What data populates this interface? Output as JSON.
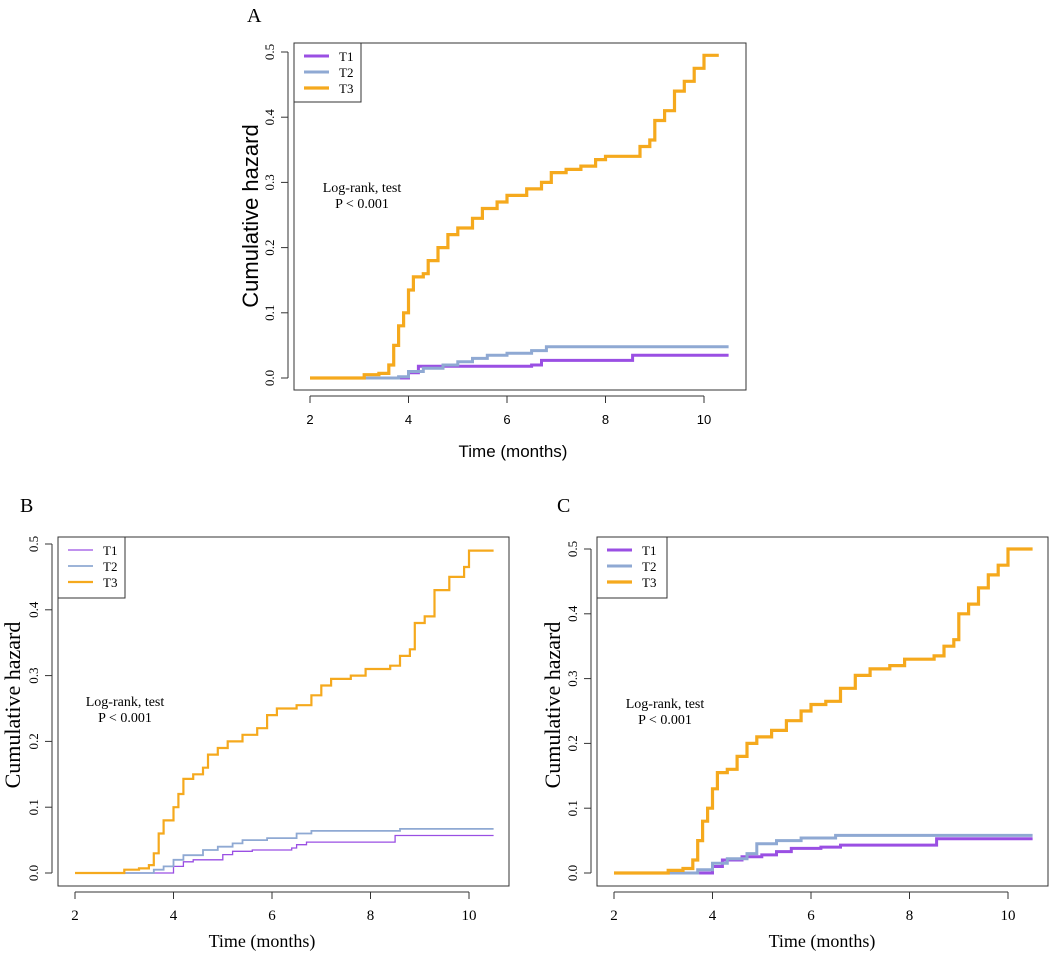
{
  "colors": {
    "T1": "#9a4fe3",
    "T2": "#8fa9d3",
    "T3": "#f5a91d"
  },
  "chart_data": [
    {
      "panel": "A",
      "type": "line",
      "step": true,
      "xlabel": "Time (months)",
      "ylabel": "Cumulative hazard",
      "xlim": [
        2,
        10.5
      ],
      "ylim": [
        0,
        0.5
      ],
      "xticks": [
        "2",
        "4",
        "6",
        "8",
        "10"
      ],
      "yticks": [
        "0.0",
        "0.1",
        "0.2",
        "0.3",
        "0.4",
        "0.5"
      ],
      "legend_position": "top-left",
      "annotation": [
        "Log-rank, test",
        "P < 0.001"
      ],
      "series": [
        {
          "name": "T1",
          "points": [
            [
              2,
              0
            ],
            [
              3.9,
              0
            ],
            [
              4,
              0.008
            ],
            [
              4.2,
              0.018
            ],
            [
              6.5,
              0.02
            ],
            [
              6.7,
              0.027
            ],
            [
              8.5,
              0.027
            ],
            [
              8.55,
              0.035
            ],
            [
              10.5,
              0.035
            ]
          ]
        },
        {
          "name": "T2",
          "points": [
            [
              2,
              0
            ],
            [
              3.5,
              0
            ],
            [
              3.8,
              0.002
            ],
            [
              4,
              0.01
            ],
            [
              4.3,
              0.015
            ],
            [
              4.7,
              0.02
            ],
            [
              5,
              0.025
            ],
            [
              5.3,
              0.03
            ],
            [
              5.6,
              0.035
            ],
            [
              6,
              0.038
            ],
            [
              6.5,
              0.042
            ],
            [
              6.8,
              0.048
            ],
            [
              10.5,
              0.048
            ]
          ]
        },
        {
          "name": "T3",
          "points": [
            [
              2,
              0
            ],
            [
              2.9,
              0
            ],
            [
              3.1,
              0.005
            ],
            [
              3.4,
              0.007
            ],
            [
              3.6,
              0.02
            ],
            [
              3.7,
              0.05
            ],
            [
              3.8,
              0.08
            ],
            [
              3.9,
              0.1
            ],
            [
              4,
              0.135
            ],
            [
              4.1,
              0.155
            ],
            [
              4.3,
              0.16
            ],
            [
              4.4,
              0.18
            ],
            [
              4.6,
              0.2
            ],
            [
              4.8,
              0.22
            ],
            [
              5,
              0.23
            ],
            [
              5.3,
              0.245
            ],
            [
              5.5,
              0.26
            ],
            [
              5.8,
              0.27
            ],
            [
              6,
              0.28
            ],
            [
              6.4,
              0.29
            ],
            [
              6.7,
              0.3
            ],
            [
              6.9,
              0.315
            ],
            [
              7.2,
              0.32
            ],
            [
              7.5,
              0.325
            ],
            [
              7.8,
              0.335
            ],
            [
              8,
              0.34
            ],
            [
              8.5,
              0.34
            ],
            [
              8.7,
              0.355
            ],
            [
              8.9,
              0.365
            ],
            [
              9,
              0.395
            ],
            [
              9.2,
              0.41
            ],
            [
              9.4,
              0.44
            ],
            [
              9.6,
              0.455
            ],
            [
              9.8,
              0.475
            ],
            [
              10,
              0.495
            ],
            [
              10.3,
              0.495
            ]
          ]
        }
      ]
    },
    {
      "panel": "B",
      "type": "line",
      "step": true,
      "xlabel": "Time (months)",
      "ylabel": "Cumulative hazard",
      "xlim": [
        2,
        10.5
      ],
      "ylim": [
        0,
        0.5
      ],
      "xticks": [
        "2",
        "4",
        "6",
        "8",
        "10"
      ],
      "yticks": [
        "0.0",
        "0.1",
        "0.2",
        "0.3",
        "0.4",
        "0.5"
      ],
      "legend_position": "top-left",
      "annotation": [
        "Log-rank, test",
        "P < 0.001"
      ],
      "series": [
        {
          "name": "T1",
          "points": [
            [
              2,
              0
            ],
            [
              3.9,
              0
            ],
            [
              4,
              0.01
            ],
            [
              4.2,
              0.017
            ],
            [
              4.4,
              0.02
            ],
            [
              5,
              0.028
            ],
            [
              5.2,
              0.033
            ],
            [
              5.6,
              0.035
            ],
            [
              6.4,
              0.038
            ],
            [
              6.5,
              0.043
            ],
            [
              6.7,
              0.047
            ],
            [
              8.5,
              0.057
            ],
            [
              10.5,
              0.057
            ]
          ]
        },
        {
          "name": "T2",
          "points": [
            [
              2,
              0
            ],
            [
              3.3,
              0
            ],
            [
              3.6,
              0.005
            ],
            [
              3.8,
              0.01
            ],
            [
              4,
              0.02
            ],
            [
              4.2,
              0.027
            ],
            [
              4.6,
              0.035
            ],
            [
              4.9,
              0.04
            ],
            [
              5.2,
              0.045
            ],
            [
              5.4,
              0.05
            ],
            [
              5.9,
              0.053
            ],
            [
              6.5,
              0.06
            ],
            [
              6.8,
              0.064
            ],
            [
              8.6,
              0.067
            ],
            [
              10.5,
              0.067
            ]
          ]
        },
        {
          "name": "T3",
          "points": [
            [
              2,
              0
            ],
            [
              2.9,
              0
            ],
            [
              3,
              0.005
            ],
            [
              3.3,
              0.007
            ],
            [
              3.5,
              0.012
            ],
            [
              3.6,
              0.03
            ],
            [
              3.7,
              0.06
            ],
            [
              3.8,
              0.08
            ],
            [
              4,
              0.1
            ],
            [
              4.1,
              0.12
            ],
            [
              4.2,
              0.143
            ],
            [
              4.4,
              0.15
            ],
            [
              4.6,
              0.16
            ],
            [
              4.7,
              0.18
            ],
            [
              4.9,
              0.19
            ],
            [
              5.1,
              0.2
            ],
            [
              5.4,
              0.21
            ],
            [
              5.7,
              0.22
            ],
            [
              5.9,
              0.24
            ],
            [
              6.1,
              0.25
            ],
            [
              6.5,
              0.255
            ],
            [
              6.8,
              0.27
            ],
            [
              7,
              0.285
            ],
            [
              7.2,
              0.295
            ],
            [
              7.6,
              0.3
            ],
            [
              7.9,
              0.31
            ],
            [
              8.4,
              0.315
            ],
            [
              8.6,
              0.33
            ],
            [
              8.8,
              0.34
            ],
            [
              8.9,
              0.38
            ],
            [
              9.1,
              0.39
            ],
            [
              9.3,
              0.43
            ],
            [
              9.6,
              0.45
            ],
            [
              9.9,
              0.465
            ],
            [
              10,
              0.49
            ],
            [
              10.5,
              0.49
            ]
          ]
        }
      ]
    },
    {
      "panel": "C",
      "type": "line",
      "step": true,
      "xlabel": "Time (months)",
      "ylabel": "Cumulative hazard",
      "xlim": [
        2,
        10.5
      ],
      "ylim": [
        0,
        0.5
      ],
      "xticks": [
        "2",
        "4",
        "6",
        "8",
        "10"
      ],
      "yticks": [
        "0.0",
        "0.1",
        "0.2",
        "0.3",
        "0.4",
        "0.5"
      ],
      "legend_position": "top-left",
      "annotation": [
        "Log-rank, test",
        "P < 0.001"
      ],
      "series": [
        {
          "name": "T1",
          "points": [
            [
              2,
              0
            ],
            [
              3.9,
              0
            ],
            [
              4,
              0.01
            ],
            [
              4.2,
              0.02
            ],
            [
              4.6,
              0.025
            ],
            [
              5,
              0.028
            ],
            [
              5.3,
              0.033
            ],
            [
              5.6,
              0.038
            ],
            [
              6.2,
              0.04
            ],
            [
              6.6,
              0.043
            ],
            [
              8.5,
              0.043
            ],
            [
              8.55,
              0.053
            ],
            [
              10.5,
              0.053
            ]
          ]
        },
        {
          "name": "T2",
          "points": [
            [
              2,
              0
            ],
            [
              3.4,
              0
            ],
            [
              3.7,
              0.005
            ],
            [
              4,
              0.015
            ],
            [
              4.3,
              0.022
            ],
            [
              4.7,
              0.03
            ],
            [
              4.9,
              0.045
            ],
            [
              5.3,
              0.05
            ],
            [
              5.8,
              0.054
            ],
            [
              6.5,
              0.058
            ],
            [
              10.5,
              0.058
            ]
          ]
        },
        {
          "name": "T3",
          "points": [
            [
              2,
              0
            ],
            [
              2.9,
              0
            ],
            [
              3.1,
              0.004
            ],
            [
              3.4,
              0.007
            ],
            [
              3.6,
              0.02
            ],
            [
              3.7,
              0.05
            ],
            [
              3.8,
              0.08
            ],
            [
              3.9,
              0.1
            ],
            [
              4,
              0.13
            ],
            [
              4.1,
              0.155
            ],
            [
              4.3,
              0.16
            ],
            [
              4.5,
              0.18
            ],
            [
              4.7,
              0.2
            ],
            [
              4.9,
              0.21
            ],
            [
              5.2,
              0.22
            ],
            [
              5.5,
              0.235
            ],
            [
              5.8,
              0.25
            ],
            [
              6,
              0.26
            ],
            [
              6.3,
              0.265
            ],
            [
              6.6,
              0.285
            ],
            [
              6.9,
              0.305
            ],
            [
              7.2,
              0.315
            ],
            [
              7.6,
              0.32
            ],
            [
              7.9,
              0.33
            ],
            [
              8.5,
              0.335
            ],
            [
              8.7,
              0.35
            ],
            [
              8.9,
              0.36
            ],
            [
              9,
              0.4
            ],
            [
              9.2,
              0.415
            ],
            [
              9.4,
              0.44
            ],
            [
              9.6,
              0.46
            ],
            [
              9.8,
              0.475
            ],
            [
              10,
              0.5
            ],
            [
              10.5,
              0.5
            ]
          ]
        }
      ]
    }
  ]
}
